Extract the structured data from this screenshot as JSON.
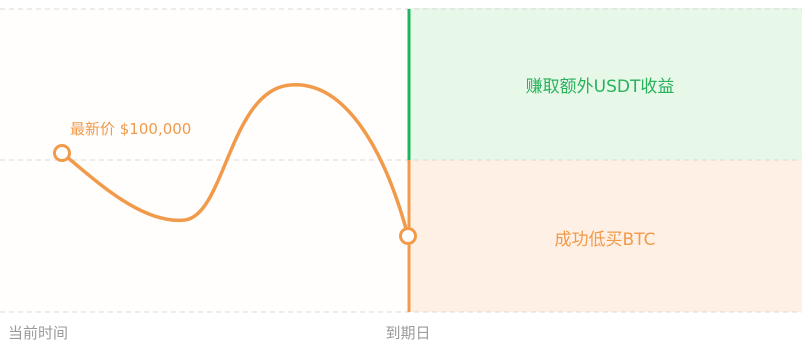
{
  "diagram": {
    "price_label": "最新价 $100,000",
    "upper_region_label": "赚取额外USDT收益",
    "lower_region_label": "成功低买BTC",
    "x_axis_start": "当前时间",
    "x_axis_end": "到期日",
    "colors": {
      "price_line": "#f19a4a",
      "upper_region_fill": "#e7f8e9",
      "upper_region_text": "#29b15b",
      "upper_marker": "#22b360",
      "lower_region_fill": "#fff0e5",
      "lower_region_text": "#f19a4a",
      "lower_marker": "#f19a4a",
      "gridline": "#d9d9d9",
      "axis_text": "#9a9a9a"
    }
  }
}
